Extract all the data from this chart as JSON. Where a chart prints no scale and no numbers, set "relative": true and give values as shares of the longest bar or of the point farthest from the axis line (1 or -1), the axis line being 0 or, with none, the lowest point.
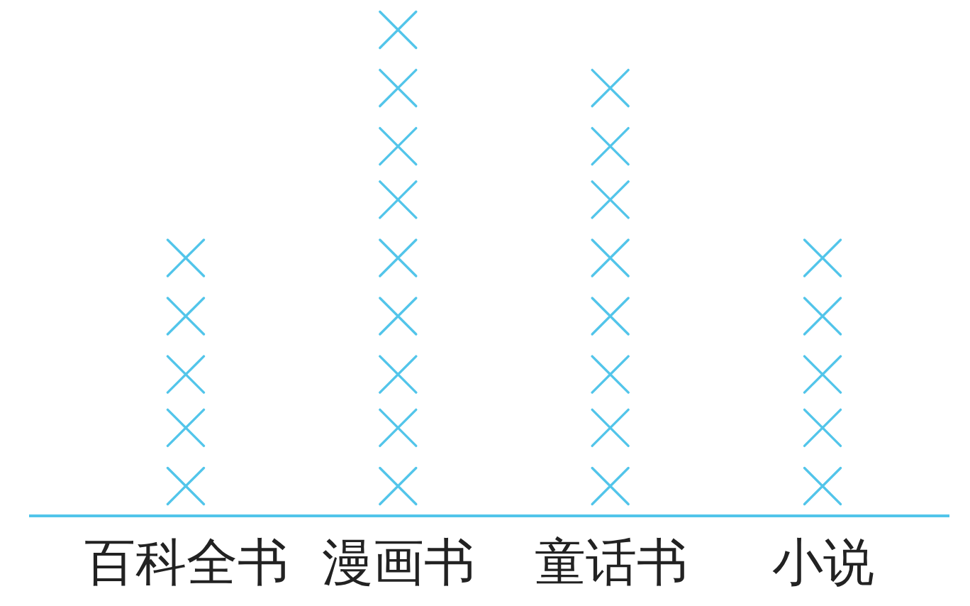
{
  "chart_data": {
    "type": "scatter",
    "relative": true,
    "categories": [
      "百科全书",
      "漫画书",
      "童话书",
      "小说"
    ],
    "series": [
      {
        "color": "#52c5ea",
        "x": [
          "百科全书",
          "百科全书",
          "百科全书",
          "百科全书",
          "百科全书",
          "漫画书",
          "漫画书",
          "漫画书",
          "漫画书",
          "漫画书",
          "漫画书",
          "漫画书",
          "漫画书",
          "漫画书",
          "童话书",
          "童话书",
          "童话书",
          "童话书",
          "童话书",
          "童话书",
          "童话书",
          "童话书",
          "小说",
          "小说",
          "小说",
          "小说",
          "小说"
        ],
        "values": [
          0.06,
          0.18,
          0.29,
          0.41,
          0.53,
          0.06,
          0.18,
          0.29,
          0.41,
          0.53,
          0.65,
          0.76,
          0.88,
          1,
          0.06,
          0.18,
          0.29,
          0.41,
          0.53,
          0.65,
          0.76,
          0.88,
          0.06,
          0.18,
          0.29,
          0.41,
          0.53
        ]
      }
    ],
    "marker": "cross",
    "tick_labels": "x"
  }
}
